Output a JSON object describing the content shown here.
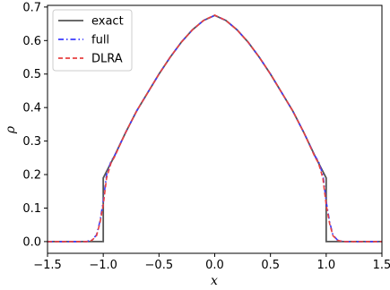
{
  "chart_data": {
    "type": "line",
    "xlabel": "x",
    "ylabel": "ρ",
    "xlim": [
      -1.5,
      1.5
    ],
    "ylim": [
      -0.035,
      0.705
    ],
    "xticks": [
      -1.5,
      -1.0,
      -0.5,
      0.0,
      0.5,
      1.0,
      1.5
    ],
    "xtick_labels": [
      "−1.5",
      "−1.0",
      "−0.5",
      "0.0",
      "0.5",
      "1.0",
      "1.5"
    ],
    "yticks": [
      0.0,
      0.1,
      0.2,
      0.3,
      0.4,
      0.5,
      0.6,
      0.7
    ],
    "ytick_labels": [
      "0.0",
      "0.1",
      "0.2",
      "0.3",
      "0.4",
      "0.5",
      "0.6",
      "0.7"
    ],
    "grid": false,
    "legend": "top-left",
    "series": [
      {
        "name": "exact",
        "color": "#555555",
        "style": "solid",
        "x": [
          -1.5,
          -1.0,
          -1.0,
          -0.9,
          -0.8,
          -0.7,
          -0.6,
          -0.5,
          -0.4,
          -0.3,
          -0.2,
          -0.1,
          0.0,
          0.1,
          0.2,
          0.3,
          0.4,
          0.5,
          0.6,
          0.7,
          0.8,
          0.9,
          1.0,
          1.0,
          1.5
        ],
        "y": [
          0.0,
          0.0,
          0.19,
          0.255,
          0.325,
          0.39,
          0.445,
          0.5,
          0.55,
          0.595,
          0.632,
          0.66,
          0.675,
          0.66,
          0.632,
          0.595,
          0.55,
          0.5,
          0.445,
          0.39,
          0.325,
          0.255,
          0.19,
          0.0,
          0.0
        ]
      },
      {
        "name": "full",
        "color": "#3b3bff",
        "style": "dashdot",
        "x": [
          -1.5,
          -1.15,
          -1.1,
          -1.06,
          -1.03,
          -1.0,
          -0.97,
          -0.93,
          -0.9,
          -0.8,
          -0.7,
          -0.6,
          -0.5,
          -0.4,
          -0.3,
          -0.2,
          -0.1,
          0.0,
          0.1,
          0.2,
          0.3,
          0.4,
          0.5,
          0.6,
          0.7,
          0.8,
          0.9,
          0.93,
          0.97,
          1.0,
          1.03,
          1.06,
          1.1,
          1.15,
          1.5
        ],
        "y": [
          0.0,
          0.0,
          0.005,
          0.02,
          0.06,
          0.12,
          0.2,
          0.24,
          0.255,
          0.325,
          0.39,
          0.445,
          0.5,
          0.55,
          0.595,
          0.632,
          0.66,
          0.675,
          0.66,
          0.632,
          0.595,
          0.55,
          0.5,
          0.445,
          0.39,
          0.325,
          0.255,
          0.24,
          0.2,
          0.12,
          0.06,
          0.02,
          0.005,
          0.0,
          0.0
        ]
      },
      {
        "name": "DLRA",
        "color": "#e84040",
        "style": "dashed",
        "x": [
          -1.5,
          -1.15,
          -1.1,
          -1.06,
          -1.03,
          -1.0,
          -0.97,
          -0.93,
          -0.9,
          -0.8,
          -0.7,
          -0.6,
          -0.5,
          -0.4,
          -0.3,
          -0.2,
          -0.1,
          0.0,
          0.1,
          0.2,
          0.3,
          0.4,
          0.5,
          0.6,
          0.7,
          0.8,
          0.9,
          0.93,
          0.97,
          1.0,
          1.03,
          1.06,
          1.1,
          1.15,
          1.5
        ],
        "y": [
          0.0,
          0.0,
          0.004,
          0.018,
          0.055,
          0.11,
          0.19,
          0.235,
          0.252,
          0.325,
          0.39,
          0.445,
          0.5,
          0.55,
          0.595,
          0.632,
          0.66,
          0.676,
          0.66,
          0.632,
          0.595,
          0.55,
          0.5,
          0.445,
          0.39,
          0.325,
          0.252,
          0.235,
          0.19,
          0.11,
          0.055,
          0.018,
          0.004,
          0.0,
          0.0
        ]
      }
    ]
  }
}
